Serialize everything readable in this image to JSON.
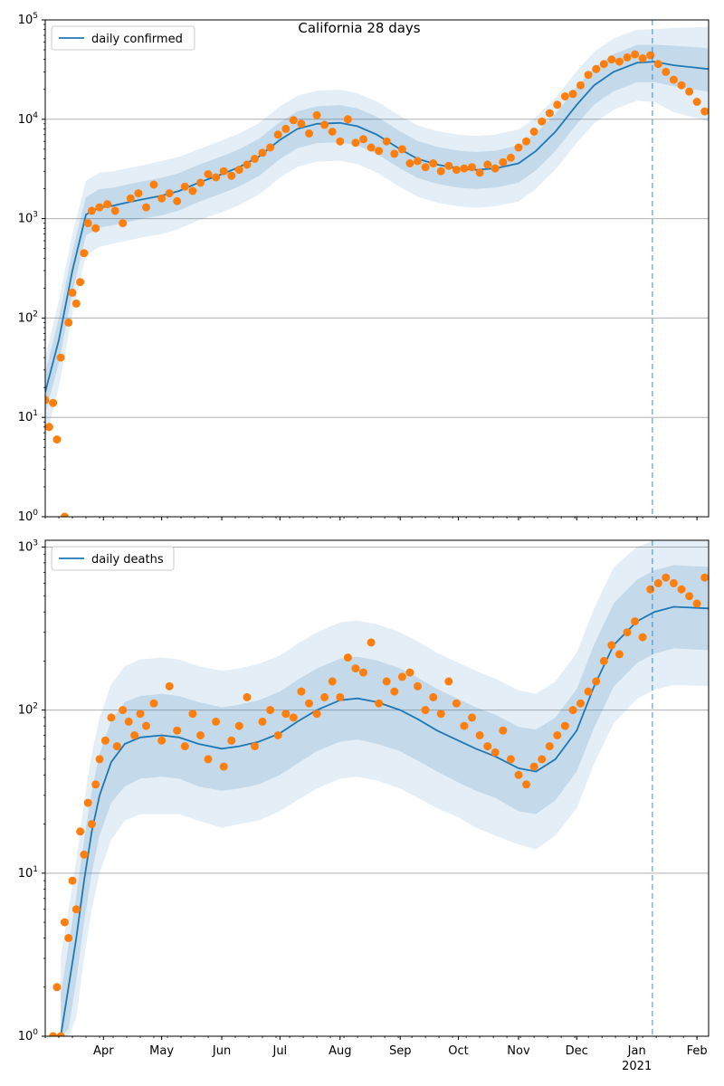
{
  "title": "California 28 days",
  "colors": {
    "line": "#1f77b4",
    "points": "#ff7f0e",
    "band": "#1f77b4",
    "grid": "#b0b0b0",
    "vline": "#1f77b4"
  },
  "x_tick_labels": [
    "Apr",
    "May",
    "Jun",
    "Jul",
    "Aug",
    "Sep",
    "Oct",
    "Nov",
    "Dec",
    "Jan",
    "Feb"
  ],
  "x_tick_dates": [
    "2020-04-01",
    "2020-05-01",
    "2020-06-01",
    "2020-07-01",
    "2020-08-01",
    "2020-09-01",
    "2020-10-01",
    "2020-11-01",
    "2020-12-01",
    "2021-01-01",
    "2021-02-01"
  ],
  "x_year_label": "2021",
  "x_range": [
    "2020-03-02",
    "2021-02-07"
  ],
  "forecast_start": "2021-01-09",
  "chart_data": [
    {
      "type": "line",
      "name": "daily confirmed",
      "scale": "log",
      "ylim": [
        1,
        100000
      ],
      "y_tick_labels": [
        "10^0",
        "10^1",
        "10^2",
        "10^3",
        "10^4",
        "10^5"
      ],
      "grid": "horizontal",
      "legend": "top-left",
      "line": {
        "x": [
          "2020-03-02",
          "2020-03-09",
          "2020-03-16",
          "2020-03-23",
          "2020-03-30",
          "2020-04-06",
          "2020-04-13",
          "2020-04-20",
          "2020-05-01",
          "2020-05-10",
          "2020-05-20",
          "2020-06-01",
          "2020-06-10",
          "2020-06-20",
          "2020-07-01",
          "2020-07-10",
          "2020-07-20",
          "2020-08-01",
          "2020-08-10",
          "2020-08-20",
          "2020-09-01",
          "2020-09-10",
          "2020-09-20",
          "2020-10-01",
          "2020-10-10",
          "2020-10-20",
          "2020-11-01",
          "2020-11-10",
          "2020-11-20",
          "2020-12-01",
          "2020-12-10",
          "2020-12-20",
          "2021-01-01",
          "2021-01-10",
          "2021-01-20",
          "2021-02-07"
        ],
        "y": [
          18,
          60,
          300,
          1100,
          1300,
          1350,
          1450,
          1550,
          1700,
          1900,
          2300,
          2800,
          3300,
          4200,
          6200,
          8000,
          9000,
          9200,
          8500,
          7000,
          5000,
          4000,
          3500,
          3200,
          3100,
          3200,
          3600,
          4800,
          7500,
          14000,
          22000,
          30000,
          37000,
          38000,
          35000,
          32000
        ]
      },
      "points": {
        "x": [
          "2020-03-02",
          "2020-03-04",
          "2020-03-06",
          "2020-03-08",
          "2020-03-10",
          "2020-03-12",
          "2020-03-14",
          "2020-03-16",
          "2020-03-18",
          "2020-03-20",
          "2020-03-22",
          "2020-03-24",
          "2020-03-26",
          "2020-03-28",
          "2020-03-30",
          "2020-04-03",
          "2020-04-07",
          "2020-04-11",
          "2020-04-15",
          "2020-04-19",
          "2020-04-23",
          "2020-04-27",
          "2020-05-01",
          "2020-05-05",
          "2020-05-09",
          "2020-05-13",
          "2020-05-17",
          "2020-05-21",
          "2020-05-25",
          "2020-05-29",
          "2020-06-02",
          "2020-06-06",
          "2020-06-10",
          "2020-06-14",
          "2020-06-18",
          "2020-06-22",
          "2020-06-26",
          "2020-06-30",
          "2020-07-04",
          "2020-07-08",
          "2020-07-12",
          "2020-07-16",
          "2020-07-20",
          "2020-07-24",
          "2020-07-28",
          "2020-08-01",
          "2020-08-05",
          "2020-08-09",
          "2020-08-13",
          "2020-08-17",
          "2020-08-21",
          "2020-08-25",
          "2020-08-29",
          "2020-09-02",
          "2020-09-06",
          "2020-09-10",
          "2020-09-14",
          "2020-09-18",
          "2020-09-22",
          "2020-09-26",
          "2020-09-30",
          "2020-10-04",
          "2020-10-08",
          "2020-10-12",
          "2020-10-16",
          "2020-10-20",
          "2020-10-24",
          "2020-10-28",
          "2020-11-01",
          "2020-11-05",
          "2020-11-09",
          "2020-11-13",
          "2020-11-17",
          "2020-11-21",
          "2020-11-25",
          "2020-11-29",
          "2020-12-03",
          "2020-12-07",
          "2020-12-11",
          "2020-12-15",
          "2020-12-19",
          "2020-12-23",
          "2020-12-27",
          "2020-12-31",
          "2021-01-04",
          "2021-01-08",
          "2021-01-12",
          "2021-01-16",
          "2021-01-20",
          "2021-01-24",
          "2021-01-28",
          "2021-02-01",
          "2021-02-05"
        ],
        "y": [
          15,
          8,
          14,
          6,
          40,
          1,
          90,
          180,
          140,
          230,
          450,
          900,
          1200,
          800,
          1300,
          1400,
          1200,
          900,
          1600,
          1800,
          1300,
          2200,
          1600,
          1800,
          1500,
          2100,
          1900,
          2300,
          2800,
          2600,
          3000,
          2700,
          3100,
          3500,
          4000,
          4600,
          5200,
          7000,
          8000,
          9800,
          9000,
          7200,
          11000,
          8800,
          7500,
          6000,
          10000,
          5800,
          6300,
          5200,
          4800,
          6000,
          4500,
          5000,
          3600,
          3800,
          3300,
          3600,
          3000,
          3400,
          3100,
          3200,
          3300,
          2900,
          3500,
          3200,
          3700,
          4100,
          5200,
          6000,
          7500,
          9500,
          11500,
          14000,
          17000,
          18000,
          22000,
          28000,
          32000,
          36000,
          40000,
          38000,
          42000,
          45000,
          41000,
          44000,
          36000,
          30000,
          25000,
          22000,
          19000,
          15000,
          12000
        ]
      },
      "bands": [
        {
          "upper": [
            40,
            150,
            700,
            2400,
            2900,
            3000,
            3200,
            3400,
            3800,
            4200,
            5000,
            6100,
            7200,
            9100,
            13500,
            17200,
            19400,
            19800,
            18300,
            15100,
            10800,
            8700,
            7600,
            7000,
            6800,
            7000,
            7900,
            10500,
            16400,
            30500,
            47800,
            65000,
            79500,
            80500,
            83000,
            85000
          ],
          "lower": [
            6,
            20,
            110,
            430,
            520,
            560,
            600,
            640,
            700,
            790,
            960,
            1160,
            1370,
            1740,
            2580,
            3330,
            3750,
            3830,
            3530,
            2910,
            2080,
            1660,
            1450,
            1330,
            1290,
            1330,
            1490,
            1990,
            3110,
            5800,
            9100,
            12500,
            15400,
            14900,
            11800,
            9500
          ]
        },
        {
          "upper": [
            28,
            100,
            470,
            1650,
            1980,
            2050,
            2200,
            2350,
            2580,
            2880,
            3480,
            4230,
            4990,
            6340,
            9400,
            12000,
            13500,
            13900,
            12800,
            10600,
            7550,
            6040,
            5280,
            4830,
            4680,
            4830,
            5440,
            7250,
            11300,
            21100,
            33200,
            45200,
            55800,
            56500,
            55000,
            52000
          ],
          "lower": [
            11,
            35,
            180,
            680,
            810,
            860,
            920,
            990,
            1080,
            1210,
            1470,
            1790,
            2110,
            2680,
            3970,
            5120,
            5760,
            5880,
            5440,
            4480,
            3200,
            2560,
            2240,
            2050,
            1990,
            2050,
            2300,
            3070,
            4800,
            8950,
            14050,
            19100,
            23600,
            23600,
            21500,
            19000
          ]
        }
      ]
    },
    {
      "type": "line",
      "name": "daily deaths",
      "scale": "log",
      "ylim": [
        1,
        1100
      ],
      "y_tick_labels": [
        "10^0",
        "10^1",
        "10^2",
        "10^3"
      ],
      "grid": "horizontal",
      "legend": "top-left",
      "line": {
        "x": [
          "2020-03-10",
          "2020-03-14",
          "2020-03-18",
          "2020-03-22",
          "2020-03-26",
          "2020-03-30",
          "2020-04-05",
          "2020-04-12",
          "2020-04-20",
          "2020-05-01",
          "2020-05-10",
          "2020-05-20",
          "2020-06-01",
          "2020-06-10",
          "2020-06-20",
          "2020-07-01",
          "2020-07-10",
          "2020-07-20",
          "2020-08-01",
          "2020-08-10",
          "2020-08-20",
          "2020-09-01",
          "2020-09-10",
          "2020-09-20",
          "2020-10-01",
          "2020-10-10",
          "2020-10-20",
          "2020-11-01",
          "2020-11-10",
          "2020-11-20",
          "2020-12-01",
          "2020-12-10",
          "2020-12-20",
          "2021-01-01",
          "2021-01-10",
          "2021-01-20",
          "2021-02-07"
        ],
        "y": [
          1,
          2,
          4,
          9,
          18,
          30,
          48,
          62,
          68,
          70,
          68,
          62,
          58,
          60,
          64,
          72,
          85,
          100,
          115,
          118,
          112,
          100,
          88,
          75,
          65,
          58,
          52,
          44,
          42,
          50,
          75,
          140,
          250,
          350,
          400,
          430,
          420
        ]
      },
      "points": {
        "x": [
          "2020-03-06",
          "2020-03-08",
          "2020-03-10",
          "2020-03-12",
          "2020-03-14",
          "2020-03-16",
          "2020-03-18",
          "2020-03-20",
          "2020-03-22",
          "2020-03-24",
          "2020-03-26",
          "2020-03-28",
          "2020-03-30",
          "2020-04-02",
          "2020-04-05",
          "2020-04-08",
          "2020-04-11",
          "2020-04-14",
          "2020-04-17",
          "2020-04-20",
          "2020-04-23",
          "2020-04-27",
          "2020-05-01",
          "2020-05-05",
          "2020-05-09",
          "2020-05-13",
          "2020-05-17",
          "2020-05-21",
          "2020-05-25",
          "2020-05-29",
          "2020-06-02",
          "2020-06-06",
          "2020-06-10",
          "2020-06-14",
          "2020-06-18",
          "2020-06-22",
          "2020-06-26",
          "2020-06-30",
          "2020-07-04",
          "2020-07-08",
          "2020-07-12",
          "2020-07-16",
          "2020-07-20",
          "2020-07-24",
          "2020-07-28",
          "2020-08-01",
          "2020-08-05",
          "2020-08-09",
          "2020-08-13",
          "2020-08-17",
          "2020-08-21",
          "2020-08-25",
          "2020-08-29",
          "2020-09-02",
          "2020-09-06",
          "2020-09-10",
          "2020-09-14",
          "2020-09-18",
          "2020-09-22",
          "2020-09-26",
          "2020-09-30",
          "2020-10-04",
          "2020-10-08",
          "2020-10-12",
          "2020-10-16",
          "2020-10-20",
          "2020-10-24",
          "2020-10-28",
          "2020-11-01",
          "2020-11-05",
          "2020-11-09",
          "2020-11-13",
          "2020-11-17",
          "2020-11-21",
          "2020-11-25",
          "2020-11-29",
          "2020-12-03",
          "2020-12-07",
          "2020-12-11",
          "2020-12-15",
          "2020-12-19",
          "2020-12-23",
          "2020-12-27",
          "2020-12-31",
          "2021-01-04",
          "2021-01-08",
          "2021-01-12",
          "2021-01-16",
          "2021-01-20",
          "2021-01-24",
          "2021-01-28",
          "2021-02-01",
          "2021-02-05"
        ],
        "y": [
          1,
          2,
          1,
          5,
          4,
          9,
          6,
          18,
          13,
          27,
          20,
          35,
          50,
          65,
          90,
          60,
          100,
          85,
          70,
          95,
          80,
          110,
          65,
          140,
          75,
          60,
          95,
          70,
          50,
          85,
          45,
          65,
          80,
          120,
          60,
          85,
          100,
          70,
          95,
          90,
          130,
          110,
          95,
          120,
          150,
          120,
          210,
          180,
          170,
          260,
          110,
          150,
          130,
          160,
          170,
          140,
          100,
          120,
          95,
          150,
          110,
          80,
          90,
          70,
          60,
          55,
          75,
          50,
          40,
          35,
          45,
          50,
          60,
          70,
          80,
          100,
          110,
          130,
          150,
          200,
          250,
          220,
          300,
          350,
          280,
          550,
          600,
          650,
          600,
          550,
          500,
          450,
          650
        ]
      },
      "bands": [
        {
          "upper": [
            3,
            6,
            12,
            27,
            54,
            90,
            144,
            186,
            204,
            210,
            204,
            186,
            174,
            180,
            192,
            216,
            255,
            300,
            345,
            354,
            336,
            300,
            264,
            225,
            195,
            174,
            156,
            132,
            126,
            150,
            225,
            420,
            750,
            1000,
            1100,
            1100,
            1100
          ],
          "lower": [
            1,
            1,
            1.3,
            3,
            6,
            10,
            16,
            21,
            23,
            23,
            23,
            21,
            19,
            20,
            21,
            24,
            28,
            33,
            38,
            39,
            37,
            33,
            29,
            25,
            22,
            19,
            17,
            15,
            14,
            17,
            25,
            47,
            83,
            117,
            133,
            143,
            140
          ]
        },
        {
          "upper": [
            1.8,
            3.6,
            7.2,
            16,
            32,
            54,
            86,
            112,
            122,
            126,
            122,
            112,
            104,
            108,
            115,
            130,
            153,
            180,
            207,
            212,
            202,
            180,
            158,
            135,
            117,
            104,
            94,
            79,
            76,
            90,
            135,
            252,
            450,
            630,
            720,
            774,
            756
          ],
          "lower": [
            1,
            1.1,
            2.2,
            5,
            10,
            17,
            27,
            34,
            38,
            39,
            38,
            34,
            32,
            33,
            35,
            40,
            47,
            56,
            64,
            66,
            62,
            56,
            49,
            42,
            36,
            32,
            29,
            24,
            23,
            28,
            42,
            78,
            139,
            194,
            222,
            239,
            233
          ]
        }
      ]
    }
  ]
}
